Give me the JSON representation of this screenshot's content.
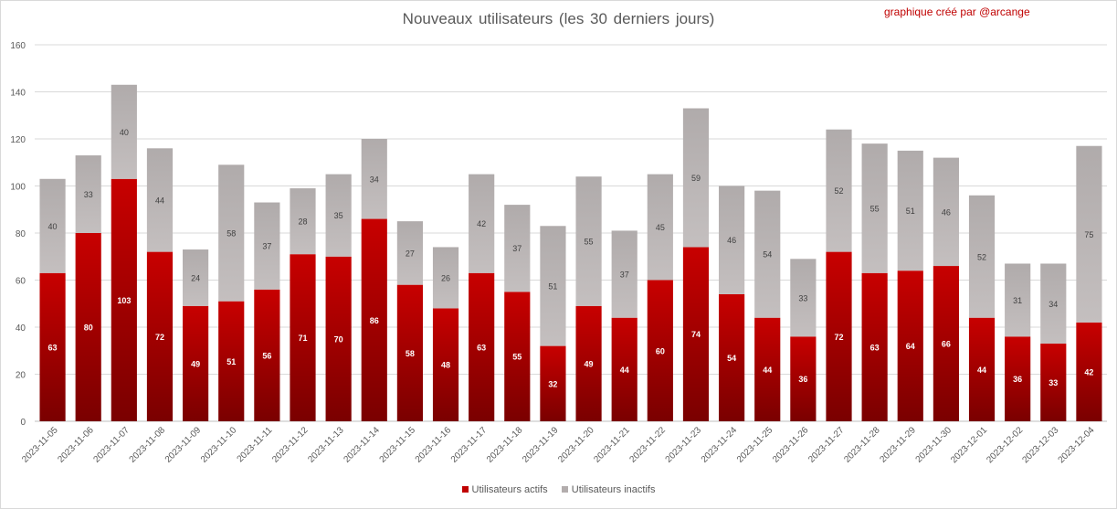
{
  "credit": "graphique créé par @arcange",
  "chart_data": {
    "type": "bar",
    "stacked": true,
    "title": "Nouveaux utilisateurs (les 30 derniers jours)",
    "xlabel": "",
    "ylabel": "",
    "ylim": [
      0,
      160
    ],
    "yticks": [
      0,
      20,
      40,
      60,
      80,
      100,
      120,
      140,
      160
    ],
    "grid": true,
    "legend_position": "bottom",
    "categories": [
      "2023-11-05",
      "2023-11-06",
      "2023-11-07",
      "2023-11-08",
      "2023-11-09",
      "2023-11-10",
      "2023-11-11",
      "2023-11-12",
      "2023-11-13",
      "2023-11-14",
      "2023-11-15",
      "2023-11-16",
      "2023-11-17",
      "2023-11-18",
      "2023-11-19",
      "2023-11-20",
      "2023-11-21",
      "2023-11-22",
      "2023-11-23",
      "2023-11-24",
      "2023-11-25",
      "2023-11-26",
      "2023-11-27",
      "2023-11-28",
      "2023-11-29",
      "2023-11-30",
      "2023-12-01",
      "2023-12-02",
      "2023-12-03",
      "2023-12-04"
    ],
    "series": [
      {
        "name": "Utilisateurs actifs",
        "color": "#c00000",
        "label_color": "#ffffff",
        "values": [
          63,
          80,
          103,
          72,
          49,
          51,
          56,
          71,
          70,
          86,
          58,
          48,
          63,
          55,
          32,
          49,
          44,
          60,
          74,
          54,
          44,
          36,
          72,
          63,
          64,
          66,
          44,
          36,
          33,
          42
        ]
      },
      {
        "name": "Utilisateurs inactifs",
        "color": "#b3adad",
        "label_color": "#404040",
        "values": [
          40,
          33,
          40,
          44,
          24,
          58,
          37,
          28,
          35,
          34,
          27,
          26,
          42,
          37,
          51,
          55,
          37,
          45,
          59,
          46,
          54,
          33,
          52,
          55,
          51,
          46,
          52,
          31,
          34,
          75
        ]
      }
    ]
  }
}
